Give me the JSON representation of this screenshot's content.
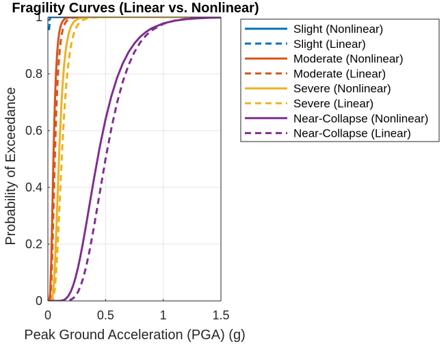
{
  "chart_data": {
    "type": "line",
    "title": "Fragility Curves (Linear vs. Nonlinear)",
    "xlabel": "Peak Ground Acceleration (PGA) (g)",
    "ylabel": "Probability of Exceedance",
    "xlim": [
      0,
      1.5
    ],
    "ylim": [
      0,
      1
    ],
    "grid": true,
    "legend_position": "outside-right-top",
    "xticks": [
      {
        "value": 0,
        "label": "0"
      },
      {
        "value": 0.5,
        "label": "0.5"
      },
      {
        "value": 1,
        "label": "1"
      },
      {
        "value": 1.5,
        "label": "1.5"
      }
    ],
    "yticks": [
      {
        "value": 0,
        "label": "0"
      },
      {
        "value": 0.2,
        "label": "0.2"
      },
      {
        "value": 0.4,
        "label": "0.4"
      },
      {
        "value": 0.6,
        "label": "0.6"
      },
      {
        "value": 0.8,
        "label": "0.8"
      },
      {
        "value": 1,
        "label": "1"
      }
    ],
    "x": [
      0.01,
      0.02,
      0.03,
      0.04,
      0.05,
      0.06,
      0.07,
      0.08,
      0.09,
      0.1,
      0.11,
      0.12,
      0.13,
      0.14,
      0.15,
      0.16,
      0.18,
      0.2,
      0.22,
      0.24,
      0.26,
      0.28,
      0.3,
      0.33,
      0.36,
      0.4,
      0.45,
      0.5,
      0.55,
      0.6,
      0.65,
      0.7,
      0.75,
      0.8,
      0.85,
      0.9,
      1.0,
      1.1,
      1.2,
      1.3,
      1.4,
      1.5
    ],
    "series": [
      {
        "name": "Slight (Nonlinear)",
        "color": "#0072BD",
        "dash": "solid",
        "median": 0.0033,
        "beta": 0.5
      },
      {
        "name": "Slight (Linear)",
        "color": "#0072BD",
        "dash": "dashed",
        "median": 0.0043,
        "beta": 0.5
      },
      {
        "name": "Moderate (Nonlinear)",
        "color": "#D95319",
        "dash": "solid",
        "median": 0.048,
        "beta": 0.45
      },
      {
        "name": "Moderate (Linear)",
        "color": "#D95319",
        "dash": "dashed",
        "median": 0.06,
        "beta": 0.45
      },
      {
        "name": "Severe (Nonlinear)",
        "color": "#EDB120",
        "dash": "solid",
        "median": 0.096,
        "beta": 0.4
      },
      {
        "name": "Severe (Linear)",
        "color": "#EDB120",
        "dash": "dashed",
        "median": 0.12,
        "beta": 0.4
      },
      {
        "name": "Near-Collapse (Nonlinear)",
        "color": "#7E2F8E",
        "dash": "solid",
        "median": 0.43,
        "beta": 0.42
      },
      {
        "name": "Near-Collapse (Linear)",
        "color": "#7E2F8E",
        "dash": "dashed",
        "median": 0.5,
        "beta": 0.35
      }
    ]
  }
}
